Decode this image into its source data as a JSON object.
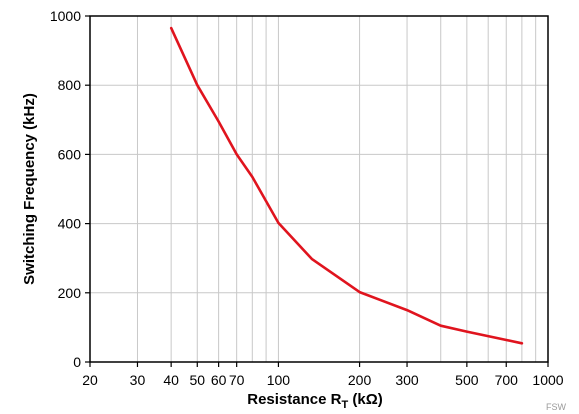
{
  "chart_data": {
    "type": "line",
    "title": "",
    "xlabel_main": "Resistance R",
    "xlabel_sub": "T",
    "xlabel_unit": " (kΩ)",
    "ylabel": "Switching Frequency (kHz)",
    "x_scale": "log",
    "xlim": [
      20,
      1000
    ],
    "ylim": [
      0,
      1000
    ],
    "x_ticks": [
      20,
      30,
      40,
      50,
      60,
      70,
      100,
      200,
      300,
      500,
      700,
      1000
    ],
    "x_tick_labels": [
      "20",
      "30",
      "40",
      "50",
      "60",
      "70",
      "100",
      "200",
      "300",
      "500",
      "700",
      "1000"
    ],
    "x_grid": [
      20,
      30,
      40,
      50,
      60,
      70,
      80,
      90,
      100,
      200,
      300,
      400,
      500,
      600,
      700,
      800,
      900,
      1000
    ],
    "y_ticks": [
      0,
      200,
      400,
      600,
      800,
      1000
    ],
    "y_tick_labels": [
      "0",
      "200",
      "400",
      "600",
      "800",
      "1000"
    ],
    "grid": true,
    "series": [
      {
        "color": "#e0141e",
        "x": [
          40,
          50,
          60,
          70,
          80,
          100,
          133,
          200,
          300,
          400,
          500,
          800
        ],
        "y": [
          965,
          800,
          695,
          600,
          535,
          402,
          298,
          202,
          150,
          105,
          88,
          54
        ]
      }
    ]
  },
  "watermark": "FSW"
}
